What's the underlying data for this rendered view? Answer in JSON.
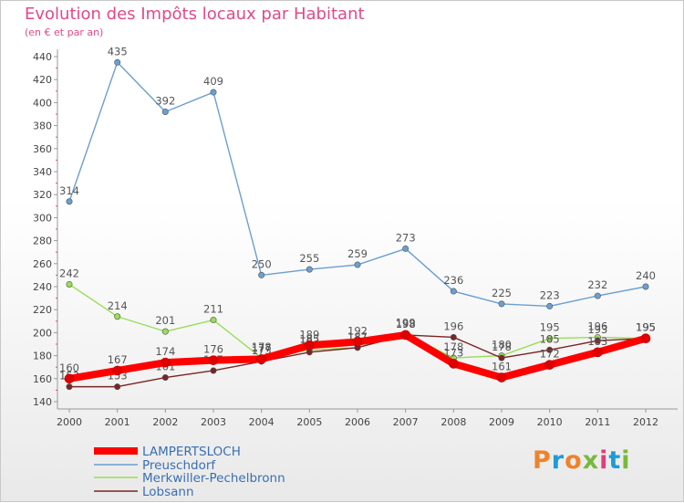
{
  "title": "Evolution des Impôts locaux par Habitant",
  "subtitle": "(en € et par an)",
  "logo": {
    "letters": [
      "P",
      "r",
      "o",
      "x",
      "i",
      "t",
      "i"
    ]
  },
  "chart_data": {
    "type": "line",
    "x": [
      2000,
      2001,
      2002,
      2003,
      2004,
      2005,
      2006,
      2007,
      2008,
      2009,
      2010,
      2011,
      2012
    ],
    "ylim": [
      140,
      440
    ],
    "yticks": [
      140,
      160,
      180,
      200,
      220,
      240,
      260,
      280,
      300,
      320,
      340,
      360,
      380,
      400,
      420,
      440
    ],
    "grid": false,
    "legend_position": "bottom-left",
    "series": [
      {
        "name": "LAMPERTSLOCH",
        "color": "#ff0000",
        "values": [
          160,
          167,
          174,
          176,
          177,
          189,
          192,
          198,
          173,
          161,
          172,
          183,
          195
        ],
        "labels": [
          "160",
          "167",
          "174",
          "176",
          "177",
          "189",
          "192",
          "198",
          "173",
          "161",
          "172",
          "183",
          "195"
        ]
      },
      {
        "name": "Preuschdorf",
        "color": "#6b9fd1",
        "values": [
          314,
          435,
          392,
          409,
          250,
          255,
          259,
          273,
          236,
          225,
          223,
          232,
          240
        ],
        "labels": [
          "314",
          "435",
          "392",
          "409",
          "250",
          "255",
          "259",
          "273",
          "236",
          "225",
          "223",
          "232",
          "240"
        ]
      },
      {
        "name": "Merkwiller-Pechelbronn",
        "color": "#99dd55",
        "values": [
          242,
          214,
          201,
          211,
          178,
          185,
          187,
          199,
          178,
          180,
          195,
          196,
          195
        ],
        "labels": [
          "242",
          "214",
          "201",
          "211",
          "178",
          "185",
          "187",
          "199",
          "178",
          "180",
          "195",
          "196",
          "195"
        ]
      },
      {
        "name": "Lobsann",
        "color": "#7a2424",
        "values": [
          153,
          153,
          161,
          167,
          175,
          183,
          187,
          198,
          196,
          178,
          185,
          193,
          195
        ],
        "labels": [
          "153",
          "153",
          "161",
          "167",
          "175",
          "183",
          "187",
          "198",
          "196",
          "178",
          "185",
          "193",
          "195"
        ]
      }
    ]
  }
}
